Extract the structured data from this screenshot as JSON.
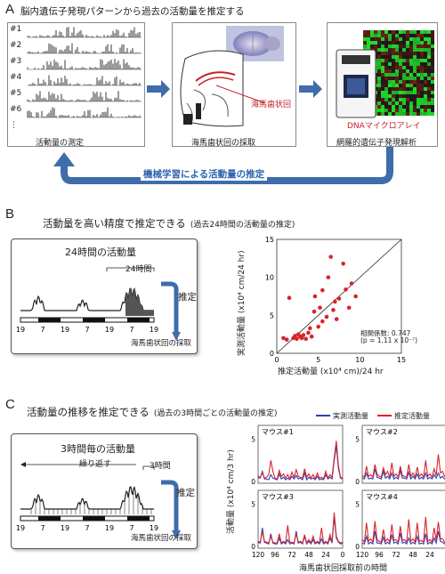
{
  "section_a": {
    "letter": "A",
    "title": "脳内遺伝子発現パターンから過去の活動量を推定する",
    "box1_caption": "活動量の測定",
    "box2_caption": "海馬歯状回の採取",
    "box3_caption": "網羅的遺伝子発現解析",
    "row_labels": [
      "#1",
      "#2",
      "#3",
      "#4",
      "#5",
      "#6",
      "⋮"
    ],
    "hippocampus_label": "海馬歯状回",
    "dna_label": "DNAマイクロアレイ",
    "feedback_label": "機械学習による活動量の推定",
    "colors": {
      "arrow": "#3f6cab",
      "red_label": "#c8202a"
    }
  },
  "section_b": {
    "letter": "B",
    "title": "活動量を高い精度で推定できる",
    "subtitle": "(過去24時間の活動量の推定)",
    "panel_title": "24時間の活動量",
    "bracket_label": "24時間",
    "estimate_label": "推定",
    "sampling_label": "海馬歯状回の採取",
    "time_ticks": [
      "19",
      "7",
      "19",
      "7",
      "19",
      "7",
      "19"
    ],
    "scatter": {
      "ylabel": "実測活動量 (x10⁴ cm/24 hr)",
      "xlabel": "推定活動量 (x10⁴ cm)/24 hr",
      "corr_label": "相関係数: 0.747",
      "p_label": "(p = 1.11 x 10⁻⁷)",
      "xticks": [
        "0",
        "5",
        "10",
        "15"
      ],
      "yticks": [
        "0",
        "5",
        "10",
        "15"
      ]
    }
  },
  "section_c": {
    "letter": "C",
    "title": "活動量の推移を推定できる",
    "subtitle": "(過去の3時間ごとの活動量の推定)",
    "panel_title": "3時間毎の活動量",
    "repeat_label": "繰り返す",
    "bracket_label": "3時間",
    "estimate_label": "推定",
    "sampling_label": "海馬歯状回の採取",
    "time_ticks": [
      "19",
      "7",
      "19",
      "7",
      "19",
      "7",
      "19"
    ],
    "legend": {
      "measured": "実測活動量",
      "estimated": "推定活動量"
    },
    "ylabel": "活動量 (x10⁴ cm/3 hr)",
    "xlabel": "海馬歯状回採取前の時間",
    "mice": [
      "マウス#1",
      "マウス#2",
      "マウス#3",
      "マウス#4"
    ],
    "xticks_left": [
      "120",
      "96",
      "72",
      "48",
      "24",
      "0"
    ],
    "xticks_right": [
      "120",
      "96",
      "72",
      "48",
      "24",
      "0"
    ],
    "colors": {
      "measured": "#2a3fb5",
      "estimated": "#d8232a"
    }
  },
  "chart_data": [
    {
      "type": "scatter",
      "title": "",
      "xlabel": "推定活動量 (x10⁴ cm)/24 hr",
      "ylabel": "実測活動量 (x10⁴ cm/24 hr)",
      "xlim": [
        0,
        15
      ],
      "ylim": [
        0,
        15
      ],
      "series": [
        {
          "points": [
            [
              0.8,
              2.0
            ],
            [
              1.2,
              1.8
            ],
            [
              1.5,
              7.3
            ],
            [
              2.0,
              2.0
            ],
            [
              2.2,
              2.3
            ],
            [
              2.4,
              1.9
            ],
            [
              2.6,
              2.5
            ],
            [
              2.8,
              2.2
            ],
            [
              3.0,
              2.0
            ],
            [
              3.2,
              2.4
            ],
            [
              3.5,
              1.9
            ],
            [
              4.0,
              3.3
            ],
            [
              4.2,
              2.2
            ],
            [
              4.5,
              5.5
            ],
            [
              4.6,
              7.5
            ],
            [
              5.0,
              3.5
            ],
            [
              5.2,
              6.0
            ],
            [
              5.5,
              4.2
            ],
            [
              5.5,
              8.3
            ],
            [
              6.0,
              4.8
            ],
            [
              6.2,
              10.0
            ],
            [
              6.5,
              12.7
            ],
            [
              7.0,
              6.8
            ],
            [
              7.2,
              4.5
            ],
            [
              7.5,
              7.2
            ],
            [
              8.0,
              11.8
            ],
            [
              8.3,
              8.4
            ],
            [
              8.7,
              6.0
            ],
            [
              9.0,
              9.2
            ],
            [
              9.5,
              7.5
            ],
            [
              3.8,
              2.7
            ],
            [
              6.8,
              5.7
            ]
          ]
        }
      ],
      "annotations": [
        "相関係数: 0.747",
        "(p = 1.11 x 10⁻⁷)"
      ]
    },
    {
      "type": "line",
      "title": "マウス#1",
      "xlabel": "海馬歯状回採取前の時間",
      "ylabel": "活動量 (x10⁴ cm/3 hr)",
      "x": [
        120,
        117,
        114,
        111,
        108,
        105,
        102,
        99,
        96,
        93,
        90,
        87,
        84,
        81,
        78,
        75,
        72,
        69,
        66,
        63,
        60,
        57,
        54,
        51,
        48,
        45,
        42,
        39,
        36,
        33,
        30,
        27,
        24,
        21,
        18,
        15,
        12,
        9,
        6,
        3,
        0
      ],
      "ylim": [
        0,
        6
      ],
      "series": [
        {
          "name": "実測活動量",
          "values": [
            0.5,
            0.4,
            1.2,
            0.3,
            0.3,
            0.2,
            0.8,
            0.4,
            0.3,
            0.2,
            0.9,
            0.3,
            0.5,
            0.2,
            0.4,
            0.2,
            0.6,
            0.3,
            0.7,
            0.3,
            0.4,
            0.2,
            1.0,
            0.2,
            0.5,
            0.3,
            0.4,
            0.2,
            0.6,
            0.2,
            0.3,
            0.2,
            0.8,
            0.3,
            0.5,
            0.3,
            2.5,
            4.2,
            1.5,
            0.4,
            0.3
          ]
        },
        {
          "name": "推定活動量",
          "values": [
            0.6,
            0.5,
            1.0,
            0.4,
            0.5,
            0.8,
            2.5,
            1.2,
            0.4,
            0.3,
            1.3,
            0.6,
            0.9,
            0.4,
            0.8,
            0.3,
            1.1,
            0.5,
            1.4,
            0.6,
            0.5,
            0.4,
            1.5,
            0.5,
            0.9,
            0.4,
            0.8,
            0.3,
            1.0,
            0.4,
            0.5,
            0.3,
            1.2,
            0.4,
            0.8,
            0.5,
            2.8,
            4.8,
            1.8,
            0.5,
            0.4
          ]
        }
      ]
    },
    {
      "type": "line",
      "title": "マウス#2",
      "xlabel": "海馬歯状回採取前の時間",
      "ylabel": "活動量 (x10⁴ cm/3 hr)",
      "x": [
        120,
        117,
        114,
        111,
        108,
        105,
        102,
        99,
        96,
        93,
        90,
        87,
        84,
        81,
        78,
        75,
        72,
        69,
        66,
        63,
        60,
        57,
        54,
        51,
        48,
        45,
        42,
        39,
        36,
        33,
        30,
        27,
        24,
        21,
        18,
        15,
        12,
        9,
        6,
        3,
        0
      ],
      "ylim": [
        0,
        6
      ],
      "series": [
        {
          "name": "実測活動量",
          "values": [
            0.4,
            0.3,
            1.0,
            0.3,
            0.4,
            0.3,
            1.5,
            0.5,
            0.4,
            0.3,
            1.2,
            0.4,
            0.6,
            0.3,
            1.0,
            0.3,
            0.5,
            0.3,
            1.3,
            0.4,
            0.4,
            0.3,
            1.1,
            0.3,
            0.6,
            0.3,
            0.9,
            0.3,
            0.5,
            0.3,
            1.0,
            0.3,
            0.5,
            0.3,
            0.8,
            0.4,
            1.0,
            0.4,
            0.6,
            0.3,
            0.4
          ]
        },
        {
          "name": "推定活動量",
          "values": [
            0.7,
            0.5,
            1.8,
            0.6,
            0.8,
            0.5,
            2.0,
            0.9,
            0.6,
            0.5,
            1.6,
            0.8,
            1.2,
            0.5,
            2.2,
            0.6,
            0.9,
            0.5,
            1.8,
            0.7,
            0.6,
            0.5,
            2.0,
            0.6,
            1.0,
            0.5,
            1.7,
            0.6,
            0.9,
            0.5,
            2.5,
            0.6,
            0.9,
            0.5,
            1.5,
            0.7,
            3.2,
            1.0,
            1.2,
            0.6,
            0.6
          ]
        }
      ]
    },
    {
      "type": "line",
      "title": "マウス#3",
      "xlabel": "海馬歯状回採取前の時間",
      "ylabel": "活動量 (x10⁴ cm/3 hr)",
      "x": [
        120,
        117,
        114,
        111,
        108,
        105,
        102,
        99,
        96,
        93,
        90,
        87,
        84,
        81,
        78,
        75,
        72,
        69,
        66,
        63,
        60,
        57,
        54,
        51,
        48,
        45,
        42,
        39,
        36,
        33,
        30,
        27,
        24,
        21,
        18,
        15,
        12,
        9,
        6,
        3,
        0
      ],
      "ylim": [
        0,
        6
      ],
      "series": [
        {
          "name": "実測活動量",
          "values": [
            0.5,
            0.4,
            2.2,
            0.5,
            0.4,
            0.3,
            1.5,
            0.4,
            0.3,
            0.3,
            1.0,
            0.3,
            0.5,
            0.3,
            0.8,
            0.3,
            0.4,
            0.3,
            1.8,
            0.4,
            0.5,
            0.3,
            1.2,
            0.3,
            0.6,
            0.3,
            0.8,
            0.3,
            0.5,
            0.3,
            0.9,
            0.3,
            0.5,
            0.3,
            1.0,
            0.4,
            3.5,
            1.0,
            0.5,
            0.3,
            0.4
          ]
        },
        {
          "name": "推定活動量",
          "values": [
            0.6,
            0.5,
            1.8,
            0.6,
            0.5,
            0.4,
            1.2,
            0.5,
            0.4,
            0.4,
            1.5,
            0.4,
            0.6,
            0.4,
            2.5,
            0.5,
            0.5,
            0.4,
            1.5,
            0.5,
            0.6,
            0.4,
            1.4,
            0.4,
            0.8,
            0.4,
            1.2,
            0.4,
            0.6,
            0.4,
            2.2,
            0.4,
            0.6,
            0.4,
            1.4,
            0.5,
            4.0,
            1.2,
            0.6,
            0.4,
            0.5
          ]
        }
      ]
    },
    {
      "type": "line",
      "title": "マウス#4",
      "xlabel": "海馬歯状回採取前の時間",
      "ylabel": "活動量 (x10⁴ cm/3 hr)",
      "x": [
        120,
        117,
        114,
        111,
        108,
        105,
        102,
        99,
        96,
        93,
        90,
        87,
        84,
        81,
        78,
        75,
        72,
        69,
        66,
        63,
        60,
        57,
        54,
        51,
        48,
        45,
        42,
        39,
        36,
        33,
        30,
        27,
        24,
        21,
        18,
        15,
        12,
        9,
        6,
        3,
        0
      ],
      "ylim": [
        0,
        6
      ],
      "series": [
        {
          "name": "実測活動量",
          "values": [
            0.4,
            0.3,
            1.2,
            0.3,
            0.5,
            0.3,
            1.8,
            0.4,
            0.4,
            0.3,
            1.1,
            0.3,
            0.5,
            0.3,
            1.4,
            0.4,
            0.5,
            0.3,
            1.6,
            0.4,
            0.5,
            0.3,
            1.0,
            0.3,
            0.5,
            0.3,
            1.2,
            0.3,
            0.4,
            0.3,
            1.5,
            0.3,
            0.5,
            0.3,
            1.0,
            0.4,
            1.8,
            0.6,
            0.5,
            0.3,
            0.4
          ]
        },
        {
          "name": "推定活動量",
          "values": [
            0.8,
            0.5,
            2.8,
            0.6,
            0.9,
            0.5,
            3.0,
            0.8,
            0.6,
            0.5,
            2.0,
            0.6,
            0.9,
            0.5,
            2.6,
            0.7,
            0.8,
            0.5,
            2.4,
            0.7,
            0.8,
            0.5,
            3.2,
            0.6,
            0.9,
            0.5,
            2.8,
            0.6,
            0.7,
            0.5,
            3.5,
            0.6,
            0.8,
            0.5,
            2.2,
            0.7,
            2.9,
            0.9,
            0.9,
            0.5,
            0.6
          ]
        }
      ]
    }
  ]
}
